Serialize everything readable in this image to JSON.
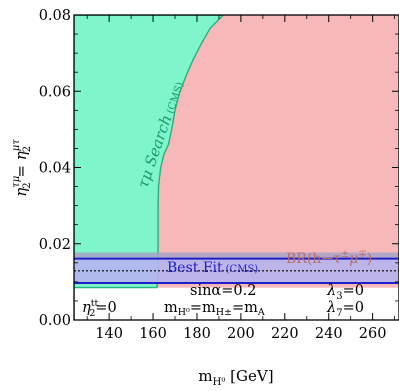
{
  "chart_data": {
    "type": "area",
    "title": "",
    "xlabel_main": "m",
    "xlabel_sub": "H⁰",
    "xlabel_unit": " [GeV]",
    "ylabel_main": "η",
    "ylabel_sup1": "τμ",
    "ylabel_sub1": "2",
    "ylabel_eq": " = η",
    "ylabel_sup2": "μτ",
    "ylabel_sub2": "2",
    "xlim": [
      124,
      272
    ],
    "ylim": [
      0,
      0.08
    ],
    "x_ticks": [
      140,
      160,
      180,
      200,
      220,
      240,
      260
    ],
    "x_ticks_minor": [
      130,
      150,
      170,
      190,
      210,
      230,
      250,
      270
    ],
    "y_ticks": [
      0.0,
      0.02,
      0.04,
      0.06,
      0.08
    ],
    "y_tick_labels": [
      "0.00",
      "0.02",
      "0.04",
      "0.06",
      "0.08"
    ],
    "y_ticks_minor": [
      0.005,
      0.01,
      0.015,
      0.025,
      0.03,
      0.035,
      0.045,
      0.05,
      0.055,
      0.065,
      0.07,
      0.075
    ],
    "grid": false,
    "regions": [
      {
        "name": "τμ Search (CMS)",
        "color": "#7ff5cc",
        "edge_color": "#1fb57e",
        "boundary": [
          [
            124,
            0.0
          ],
          [
            124,
            0.08
          ],
          [
            192,
            0.08
          ],
          [
            186,
            0.0765
          ],
          [
            182,
            0.0725
          ],
          [
            178,
            0.068
          ],
          [
            175,
            0.064
          ],
          [
            172,
            0.0595
          ],
          [
            170,
            0.055
          ],
          [
            168.5,
            0.05
          ],
          [
            167,
            0.046
          ],
          [
            165,
            0.0435
          ],
          [
            163.5,
            0.04
          ],
          [
            162.5,
            0.035
          ],
          [
            162.3,
            0.03
          ],
          [
            162.3,
            0.02
          ],
          [
            162.1,
            0.012
          ],
          [
            161.8,
            0.0085
          ],
          [
            124,
            0.0085
          ]
        ]
      },
      {
        "name": "BR(h→τ±μ∓)",
        "color": "#f6b8b8",
        "boundary": [
          [
            161.8,
            0.0085
          ],
          [
            162.1,
            0.012
          ],
          [
            162.3,
            0.02
          ],
          [
            162.3,
            0.03
          ],
          [
            162.5,
            0.035
          ],
          [
            163.5,
            0.04
          ],
          [
            165,
            0.0435
          ],
          [
            167,
            0.046
          ],
          [
            168.5,
            0.05
          ],
          [
            170,
            0.055
          ],
          [
            172,
            0.0595
          ],
          [
            175,
            0.064
          ],
          [
            178,
            0.068
          ],
          [
            182,
            0.0725
          ],
          [
            186,
            0.0765
          ],
          [
            192,
            0.08
          ],
          [
            272,
            0.08
          ],
          [
            272,
            0.0085
          ]
        ]
      }
    ],
    "best_fit": {
      "label": "Best Fit",
      "label_tag": "(CMS)",
      "band": [
        0.0097,
        0.0161
      ],
      "value": 0.0129,
      "color": "#1f1fc8",
      "fill": "#b7b4f0"
    },
    "br_band": {
      "band": [
        0.0161,
        0.0177
      ],
      "color": "#a6a3c8"
    },
    "annotations": {
      "search_label": "τμ Search",
      "search_tag": "(CMS)",
      "br_label": "BR(h→τ",
      "br_sup1": "±",
      "br_mu": "μ",
      "br_sup2": "∓",
      "br_close": ")",
      "sin_alpha": "sinα=0.2",
      "lambda3": "λ",
      "lambda3_sub": "3",
      "lambda3_val": "=0",
      "lambda7": "λ",
      "lambda7_sub": "7",
      "lambda7_val": "=0",
      "eta_tt": "η",
      "eta_tt_sup": "tt",
      "eta_tt_sub": "2",
      "eta_tt_val": "=0",
      "mass_m1": "m",
      "mass_s1": "H⁰",
      "mass_m2": "=m",
      "mass_s2": "H±",
      "mass_m3": "=m",
      "mass_s3": "A"
    },
    "colors": {
      "search_text": "#1a9a6a",
      "br_text": "#b86a6a",
      "best_fit_text": "#1f1fc8"
    }
  }
}
